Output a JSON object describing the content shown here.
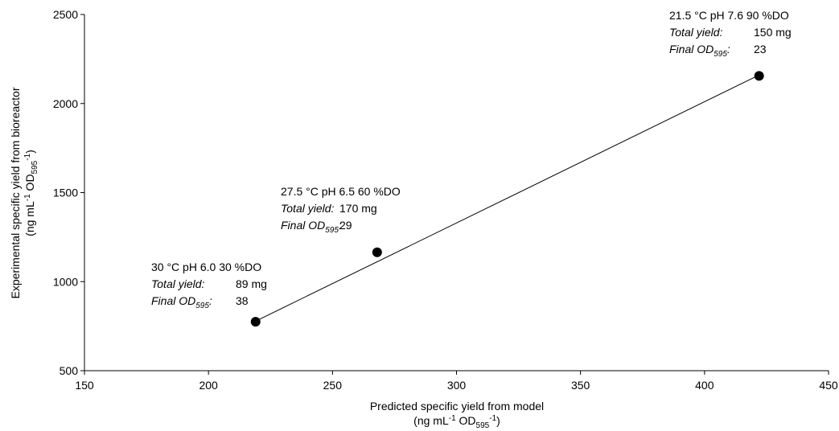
{
  "chart_data": {
    "type": "scatter",
    "title": "",
    "xlabel": "Predicted specific yield from model",
    "xlabel_units": "(ng mL-1 OD595-1)",
    "ylabel": "Experimental specific yield from bioreactor",
    "ylabel_units": "(ng mL-1 OD595-1)",
    "xlim": [
      150,
      450
    ],
    "ylim": [
      500,
      2500
    ],
    "xticks": [
      150,
      200,
      250,
      300,
      350,
      400,
      450
    ],
    "yticks": [
      500,
      1000,
      1500,
      2000,
      2500
    ],
    "grid": false,
    "legend": "none",
    "points": [
      {
        "x": 219,
        "y": 775
      },
      {
        "x": 268,
        "y": 1165
      },
      {
        "x": 422,
        "y": 2155
      }
    ],
    "trendline": {
      "x": [
        219,
        422
      ],
      "y": [
        778,
        2160
      ]
    },
    "annotations": [
      {
        "condition": "30 °C pH 6.0 30 %DO",
        "total_yield_label": "Total yield:",
        "total_yield_value": "89 mg",
        "final_od_label": "Final OD",
        "final_od_sub": "595",
        "final_od_value": "38"
      },
      {
        "condition": "27.5 °C pH 6.5 60 %DO",
        "total_yield_label": "Total yield:",
        "total_yield_value": "170 mg",
        "final_od_label": "Final OD",
        "final_od_sub": "595",
        "final_od_value": "29"
      },
      {
        "condition": "21.5 °C pH 7.6 90 %DO",
        "total_yield_label": "Total yield:",
        "total_yield_value": "150 mg",
        "final_od_label": "Final OD",
        "final_od_sub": "595",
        "final_od_value": "23"
      }
    ],
    "colors": {
      "marker": "#000000",
      "line": "#000000",
      "axis": "#000000"
    }
  }
}
